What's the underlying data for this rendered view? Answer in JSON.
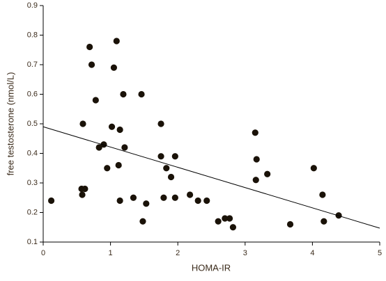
{
  "chart_data": {
    "type": "scatter",
    "x_label": "HOMA-IR",
    "y_label": "free testosterone (nmol/L)",
    "xlim": [
      0,
      5
    ],
    "xticks": [
      0,
      1,
      2,
      3,
      4,
      5
    ],
    "ylim": [
      0.1,
      0.9
    ],
    "yticks": [
      0.1,
      0.2,
      0.3,
      0.4,
      0.5,
      0.6,
      0.7,
      0.8,
      0.9
    ],
    "color": "#1a1208",
    "x": [
      0.12,
      0.57,
      0.58,
      0.62,
      0.59,
      0.69,
      0.72,
      0.78,
      0.83,
      0.9,
      0.95,
      1.02,
      1.05,
      1.09,
      1.12,
      1.14,
      1.14,
      1.19,
      1.21,
      1.34,
      1.46,
      1.48,
      1.53,
      1.75,
      1.75,
      1.79,
      1.83,
      1.9,
      1.96,
      1.96,
      2.18,
      2.3,
      2.43,
      2.6,
      2.7,
      2.77,
      2.82,
      3.15,
      3.17,
      3.16,
      3.33,
      3.67,
      4.02,
      4.15,
      4.17,
      4.39
    ],
    "values": [
      0.24,
      0.28,
      0.26,
      0.28,
      0.5,
      0.76,
      0.7,
      0.58,
      0.42,
      0.43,
      0.35,
      0.49,
      0.69,
      0.78,
      0.36,
      0.48,
      0.24,
      0.6,
      0.42,
      0.25,
      0.6,
      0.17,
      0.23,
      0.5,
      0.39,
      0.25,
      0.35,
      0.32,
      0.39,
      0.25,
      0.26,
      0.24,
      0.24,
      0.17,
      0.18,
      0.18,
      0.15,
      0.47,
      0.38,
      0.31,
      0.33,
      0.16,
      0.35,
      0.26,
      0.17,
      0.19
    ],
    "regression": {
      "x": [
        0,
        5
      ],
      "values": [
        0.49,
        0.147
      ]
    }
  }
}
